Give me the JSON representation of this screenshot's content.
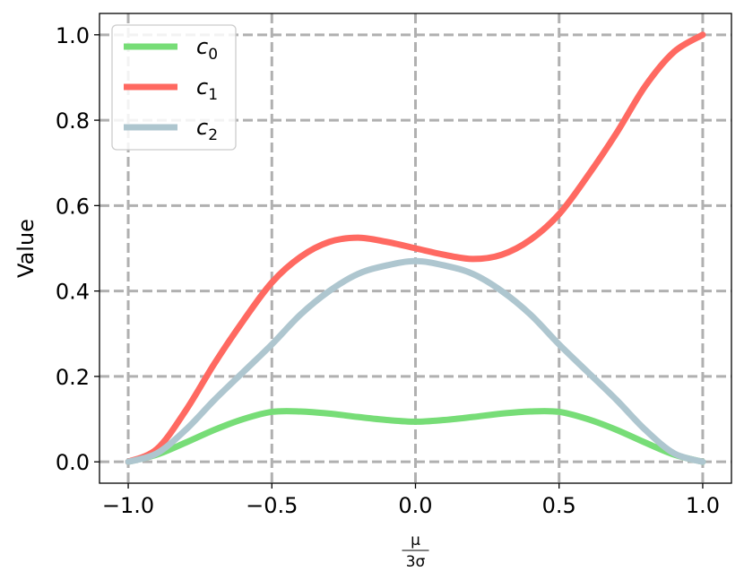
{
  "chart_data": {
    "type": "line",
    "xlabel": {
      "numerator": "μ",
      "denominator": "3σ"
    },
    "ylabel": "Value",
    "xlim": [
      -1.1,
      1.1
    ],
    "ylim": [
      -0.05,
      1.05
    ],
    "xticks": [
      -1.0,
      -0.5,
      0.0,
      0.5,
      1.0
    ],
    "xtick_labels": [
      "−1.0",
      "−0.5",
      "0.0",
      "0.5",
      "1.0"
    ],
    "yticks": [
      0.0,
      0.2,
      0.4,
      0.6,
      0.8,
      1.0
    ],
    "ytick_labels": [
      "0.0",
      "0.2",
      "0.4",
      "0.6",
      "0.8",
      "1.0"
    ],
    "grid": true,
    "legend_position": "top-left",
    "x": [
      -1.0,
      -0.9,
      -0.8,
      -0.7,
      -0.6,
      -0.5,
      -0.4,
      -0.3,
      -0.2,
      -0.1,
      0.0,
      0.1,
      0.2,
      0.3,
      0.4,
      0.5,
      0.6,
      0.7,
      0.8,
      0.9,
      1.0
    ],
    "series": [
      {
        "name": "c",
        "subscript": "0",
        "color": "#77dd77",
        "values": [
          0.0,
          0.017,
          0.045,
          0.075,
          0.1,
          0.117,
          0.118,
          0.113,
          0.105,
          0.098,
          0.094,
          0.098,
          0.105,
          0.113,
          0.118,
          0.117,
          0.1,
          0.075,
          0.045,
          0.017,
          0.0
        ]
      },
      {
        "name": "c",
        "subscript": "1",
        "color": "#ff6961",
        "values": [
          0.0,
          0.03,
          0.12,
          0.23,
          0.33,
          0.42,
          0.48,
          0.515,
          0.525,
          0.515,
          0.5,
          0.485,
          0.475,
          0.485,
          0.52,
          0.58,
          0.67,
          0.77,
          0.88,
          0.96,
          1.0
        ]
      },
      {
        "name": "c",
        "subscript": "2",
        "color": "#aec6cf",
        "values": [
          0.0,
          0.02,
          0.075,
          0.145,
          0.21,
          0.275,
          0.345,
          0.4,
          0.44,
          0.46,
          0.47,
          0.46,
          0.44,
          0.4,
          0.345,
          0.275,
          0.21,
          0.145,
          0.075,
          0.02,
          0.0
        ]
      }
    ]
  }
}
